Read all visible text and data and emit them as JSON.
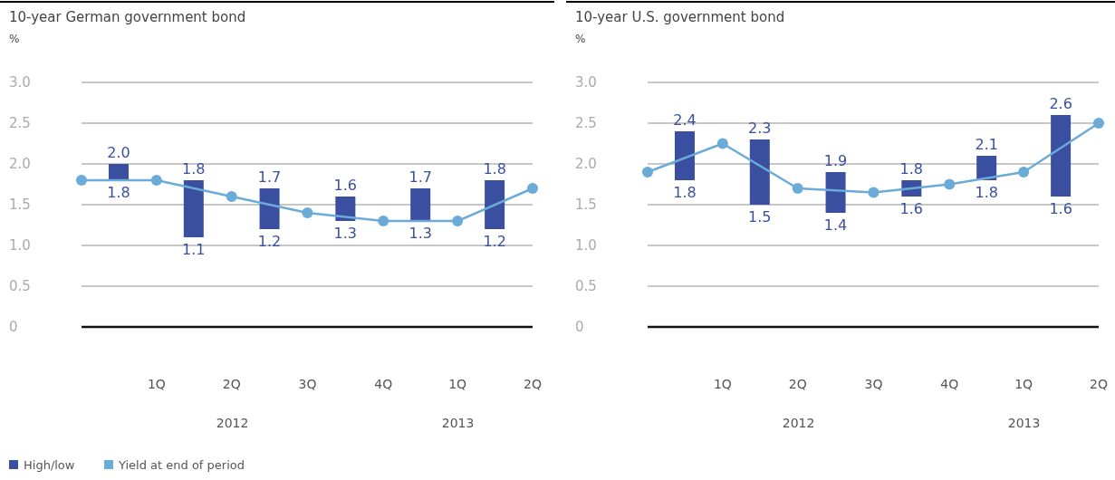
{
  "chart_data": [
    {
      "type": "bar",
      "title": "10-year German government bond",
      "ylabel": "%",
      "x": [
        "2012-02-14",
        "2012-05-15",
        "2012-08-15",
        "2012-11-15",
        "2013-02-14",
        "2013-05-15"
      ],
      "xlim": [
        "2011-12-31",
        "2013-06-30"
      ],
      "xticks": [
        {
          "value": "2012-03-31",
          "label": "1Q"
        },
        {
          "value": "2012-06-30",
          "label": "2Q"
        },
        {
          "value": "2012-09-30",
          "label": "3Q"
        },
        {
          "value": "2012-12-31",
          "label": "4Q"
        },
        {
          "value": "2013-03-31",
          "label": "1Q"
        },
        {
          "value": "2013-06-30",
          "label": "2Q"
        }
      ],
      "ylim": [
        0,
        3
      ],
      "yticks": [
        0,
        0.5,
        {
          "value": 1,
          "label": "1.0"
        },
        1.5,
        {
          "value": 2,
          "label": "2.0"
        },
        2.5,
        {
          "value": 3,
          "label": "3.0"
        }
      ],
      "grid": "y",
      "legend": "bottom left",
      "series": [
        {
          "name": "High/low",
          "color": "#3a4fa0",
          "base": [
            1.8,
            1.1,
            1.2,
            1.3,
            1.3,
            1.2
          ],
          "values": [
            0.2,
            0.7,
            0.5,
            0.3,
            0.4,
            0.6
          ]
        },
        {
          "name": "Yield at end of period",
          "type": "line",
          "color": "#6aabd8",
          "marker": "circle",
          "x": [
            "2011-12-31",
            "2012-03-31",
            "2012-06-30",
            "2012-09-30",
            "2012-12-31",
            "2013-03-31",
            "2013-06-30"
          ],
          "values": [
            1.8,
            1.8,
            1.6,
            1.4,
            1.3,
            1.3,
            1.7
          ]
        }
      ],
      "annotations": [
        {
          "text": "2.0",
          "x": "2012-02-14",
          "y": 2.0
        },
        {
          "text": "1.8",
          "x": "2012-02-14",
          "y": 1.8
        },
        {
          "text": "1.8",
          "x": "2012-05-15",
          "y": 1.8
        },
        {
          "text": "1.1",
          "x": "2012-05-15",
          "y": 1.1
        },
        {
          "text": "1.7",
          "x": "2012-08-15",
          "y": 1.7
        },
        {
          "text": "1.2",
          "x": "2012-08-15",
          "y": 1.2
        },
        {
          "text": "1.6",
          "x": "2012-11-15",
          "y": 1.6
        },
        {
          "text": "1.3",
          "x": "2012-11-15",
          "y": 1.3
        },
        {
          "text": "1.7",
          "x": "2013-02-14",
          "y": 1.7
        },
        {
          "text": "1.3",
          "x": "2013-02-14",
          "y": 1.3
        },
        {
          "text": "1.8",
          "x": "2013-05-15",
          "y": 1.8
        },
        {
          "text": "1.2",
          "x": "2013-05-15",
          "y": 1.2
        },
        "2012",
        "2013"
      ]
    },
    {
      "type": "bar",
      "title": "10-year U.S. government bond",
      "ylabel": "%",
      "x": [
        "2012-02-14",
        "2012-05-15",
        "2012-08-15",
        "2012-11-15",
        "2013-02-14",
        "2013-05-15"
      ],
      "xlim": [
        "2011-12-31",
        "2013-06-30"
      ],
      "xticks": [
        {
          "value": "2012-03-31",
          "label": "1Q"
        },
        {
          "value": "2012-06-30",
          "label": "2Q"
        },
        {
          "value": "2012-09-30",
          "label": "3Q"
        },
        {
          "value": "2012-12-31",
          "label": "4Q"
        },
        {
          "value": "2013-03-31",
          "label": "1Q"
        },
        {
          "value": "2013-06-30",
          "label": "2Q"
        }
      ],
      "ylim": [
        0,
        3
      ],
      "yticks": [
        0,
        0.5,
        {
          "value": 1,
          "label": "1.0"
        },
        1.5,
        {
          "value": 2,
          "label": "2.0"
        },
        2.5,
        {
          "value": 3,
          "label": "3.0"
        }
      ],
      "grid": "y",
      "series": [
        {
          "color": "#3a4fa0",
          "base": [
            1.8,
            1.5,
            1.4,
            1.6,
            1.8,
            1.6
          ],
          "values": [
            0.6,
            0.8,
            0.5,
            0.2,
            0.3,
            1.0
          ]
        },
        {
          "type": "line",
          "color": "#6aabd8",
          "marker": "circle",
          "x": [
            "2011-12-31",
            "2012-03-31",
            "2012-06-30",
            "2012-09-30",
            "2012-12-31",
            "2013-03-31",
            "2013-06-30"
          ],
          "values": [
            1.9,
            2.25,
            1.7,
            1.65,
            1.75,
            1.9,
            2.5
          ]
        }
      ],
      "annotations": [
        {
          "text": "2.4",
          "x": "2012-02-14",
          "y": 2.4
        },
        {
          "text": "1.8",
          "x": "2012-02-14",
          "y": 1.8
        },
        {
          "text": "2.3",
          "x": "2012-05-15",
          "y": 2.3
        },
        {
          "text": "1.5",
          "x": "2012-05-15",
          "y": 1.5
        },
        {
          "text": "1.9",
          "x": "2012-08-15",
          "y": 1.9
        },
        {
          "text": "1.4",
          "x": "2012-08-15",
          "y": 1.4
        },
        {
          "text": "1.8",
          "x": "2012-11-15",
          "y": 1.8
        },
        {
          "text": "1.6",
          "x": "2012-11-15",
          "y": 1.6
        },
        {
          "text": "2.1",
          "x": "2013-02-14",
          "y": 2.1
        },
        {
          "text": "1.8",
          "x": "2013-02-14",
          "y": 1.8
        },
        {
          "text": "2.6",
          "x": "2013-05-15",
          "y": 2.6
        },
        {
          "text": "1.6",
          "x": "2013-05-15",
          "y": 1.6
        },
        "2012",
        "2013"
      ]
    }
  ]
}
